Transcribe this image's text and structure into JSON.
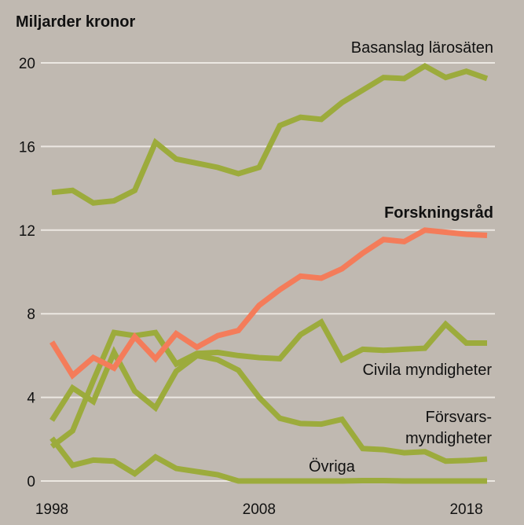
{
  "chart_data": {
    "type": "line",
    "title": "Miljarder kronor",
    "ylabel": "Miljarder kronor",
    "xlabel": "",
    "ylim": [
      0,
      20
    ],
    "yticks": [
      "0",
      "4",
      "8",
      "12",
      "16",
      "20"
    ],
    "ytick_values": [
      0,
      4,
      8,
      12,
      16,
      20
    ],
    "xticks": [
      "1998",
      "2008",
      "2018"
    ],
    "xtick_values": [
      1998,
      2008,
      2018
    ],
    "grid": true,
    "x": [
      1998,
      1999,
      2000,
      2001,
      2002,
      2003,
      2004,
      2005,
      2006,
      2007,
      2008,
      2009,
      2010,
      2011,
      2012,
      2013,
      2014,
      2015,
      2016,
      2017,
      2018,
      2019
    ],
    "series": [
      {
        "name": "Basanslag lärosäten",
        "label_lines": [
          "Basanslag lärosäten"
        ],
        "color": "#9cab3c",
        "bold": false,
        "values": [
          13.8,
          13.9,
          13.3,
          13.4,
          13.9,
          16.2,
          15.4,
          15.2,
          15.0,
          14.7,
          15.0,
          17.0,
          17.4,
          17.3,
          18.1,
          18.7,
          19.3,
          19.25,
          19.85,
          19.3,
          19.6,
          19.25
        ]
      },
      {
        "name": "Forskningsråd",
        "label_lines": [
          "Forskningsråd"
        ],
        "color": "#f47c5a",
        "bold": true,
        "values": [
          6.65,
          5.05,
          5.9,
          5.4,
          6.9,
          5.85,
          7.05,
          6.4,
          6.95,
          7.2,
          8.4,
          9.15,
          9.8,
          9.7,
          10.15,
          10.9,
          11.55,
          11.45,
          12.0,
          11.9,
          11.8,
          11.75
        ]
      },
      {
        "name": "Civila myndigheter",
        "label_lines": [
          "Civila myndigheter"
        ],
        "color": "#9cab3c",
        "bold": false,
        "values": [
          1.65,
          2.4,
          4.8,
          7.1,
          6.95,
          7.1,
          5.6,
          6.1,
          6.15,
          6.0,
          5.9,
          5.85,
          7.0,
          7.6,
          5.8,
          6.3,
          6.25,
          6.3,
          6.35,
          7.5,
          6.6,
          6.6
        ]
      },
      {
        "name": "Försvarsmyndigheter",
        "label_lines": [
          "Försvars-",
          "myndigheter"
        ],
        "color": "#9cab3c",
        "bold": false,
        "values": [
          2.9,
          4.45,
          3.8,
          6.15,
          4.3,
          3.5,
          5.25,
          6.0,
          5.8,
          5.3,
          4.0,
          3.0,
          2.75,
          2.72,
          2.95,
          1.55,
          1.5,
          1.35,
          1.4,
          0.95,
          0.98,
          1.05
        ]
      },
      {
        "name": "Övriga",
        "label_lines": [
          "Övriga"
        ],
        "color": "#9cab3c",
        "bold": false,
        "values": [
          2.05,
          0.75,
          1.0,
          0.95,
          0.35,
          1.15,
          0.6,
          0.45,
          0.3,
          0.0,
          0.0,
          0.0,
          0.0,
          0.0,
          0.0,
          0.02,
          0.02,
          0.0,
          0.0,
          0.0,
          0.0,
          0.0
        ]
      }
    ]
  }
}
